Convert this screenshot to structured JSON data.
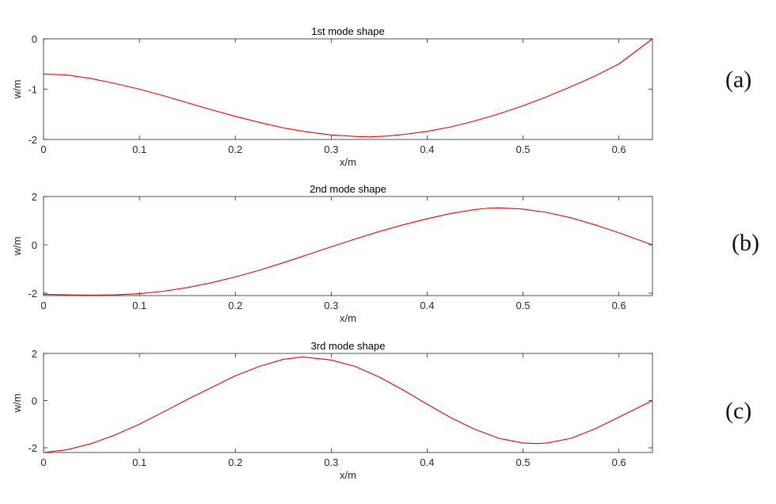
{
  "chart_data": [
    {
      "type": "line",
      "title": "1st mode shape",
      "xlabel": "x/m",
      "ylabel": "w/m",
      "panel_label": "(a)",
      "xlim": [
        0,
        0.635
      ],
      "ylim": [
        -2,
        0
      ],
      "xticks": [
        0,
        0.1,
        0.2,
        0.3,
        0.4,
        0.5,
        0.6
      ],
      "xtick_labels": [
        "0",
        "0.1",
        "0.2",
        "0.3",
        "0.4",
        "0.5",
        "0.6"
      ],
      "yticks": [
        0,
        -1,
        -2
      ],
      "ytick_labels": [
        "0",
        "-1",
        "-2"
      ],
      "grid": false,
      "line_color": "#e8000b",
      "series": [
        {
          "x": [
            0,
            0.025,
            0.05,
            0.075,
            0.1,
            0.125,
            0.15,
            0.175,
            0.2,
            0.225,
            0.25,
            0.275,
            0.3,
            0.325,
            0.34,
            0.36,
            0.38,
            0.4,
            0.425,
            0.45,
            0.475,
            0.5,
            0.525,
            0.55,
            0.575,
            0.6,
            0.635
          ],
          "values": [
            -0.7,
            -0.72,
            -0.79,
            -0.89,
            -1.0,
            -1.13,
            -1.27,
            -1.41,
            -1.54,
            -1.66,
            -1.77,
            -1.85,
            -1.91,
            -1.94,
            -1.95,
            -1.93,
            -1.89,
            -1.84,
            -1.75,
            -1.63,
            -1.49,
            -1.33,
            -1.15,
            -0.95,
            -0.74,
            -0.5,
            0.0
          ]
        }
      ]
    },
    {
      "type": "line",
      "title": "2nd mode shape",
      "xlabel": "x/m",
      "ylabel": "w/m",
      "panel_label": "(b)",
      "xlim": [
        0,
        0.635
      ],
      "ylim": [
        -2.1,
        2
      ],
      "xticks": [
        0,
        0.1,
        0.2,
        0.3,
        0.4,
        0.5,
        0.6
      ],
      "xtick_labels": [
        "0",
        "0.1",
        "0.2",
        "0.3",
        "0.4",
        "0.5",
        "0.6"
      ],
      "yticks": [
        2,
        0,
        -2
      ],
      "ytick_labels": [
        "2",
        "0",
        "-2"
      ],
      "grid": false,
      "line_color": "#e8000b",
      "series": [
        {
          "x": [
            0,
            0.025,
            0.05,
            0.075,
            0.1,
            0.125,
            0.15,
            0.175,
            0.2,
            0.225,
            0.25,
            0.275,
            0.3,
            0.325,
            0.35,
            0.375,
            0.4,
            0.425,
            0.45,
            0.465,
            0.475,
            0.5,
            0.525,
            0.55,
            0.575,
            0.6,
            0.635
          ],
          "values": [
            -2.05,
            -2.07,
            -2.08,
            -2.07,
            -2.02,
            -1.92,
            -1.77,
            -1.57,
            -1.33,
            -1.05,
            -0.74,
            -0.41,
            -0.08,
            0.24,
            0.55,
            0.83,
            1.08,
            1.3,
            1.46,
            1.52,
            1.53,
            1.48,
            1.34,
            1.12,
            0.83,
            0.5,
            0.0
          ]
        }
      ]
    },
    {
      "type": "line",
      "title": "3rd mode shape",
      "xlabel": "x/m",
      "ylabel": "w/m",
      "panel_label": "(c)",
      "xlim": [
        0,
        0.635
      ],
      "ylim": [
        -2.2,
        2
      ],
      "xticks": [
        0,
        0.1,
        0.2,
        0.3,
        0.4,
        0.5,
        0.6
      ],
      "xtick_labels": [
        "0",
        "0.1",
        "0.2",
        "0.3",
        "0.4",
        "0.5",
        "0.6"
      ],
      "yticks": [
        2,
        0,
        -2
      ],
      "ytick_labels": [
        "2",
        "0",
        "-2"
      ],
      "grid": false,
      "line_color": "#e8000b",
      "series": [
        {
          "x": [
            0,
            0.025,
            0.05,
            0.075,
            0.1,
            0.125,
            0.15,
            0.175,
            0.2,
            0.225,
            0.25,
            0.27,
            0.3,
            0.325,
            0.35,
            0.375,
            0.4,
            0.425,
            0.45,
            0.475,
            0.5,
            0.515,
            0.525,
            0.55,
            0.575,
            0.6,
            0.635
          ],
          "values": [
            -2.2,
            -2.08,
            -1.82,
            -1.45,
            -1.0,
            -0.48,
            0.05,
            0.55,
            1.05,
            1.45,
            1.75,
            1.85,
            1.72,
            1.45,
            1.0,
            0.45,
            -0.15,
            -0.73,
            -1.22,
            -1.6,
            -1.8,
            -1.82,
            -1.8,
            -1.6,
            -1.2,
            -0.7,
            0.0
          ]
        }
      ]
    }
  ]
}
